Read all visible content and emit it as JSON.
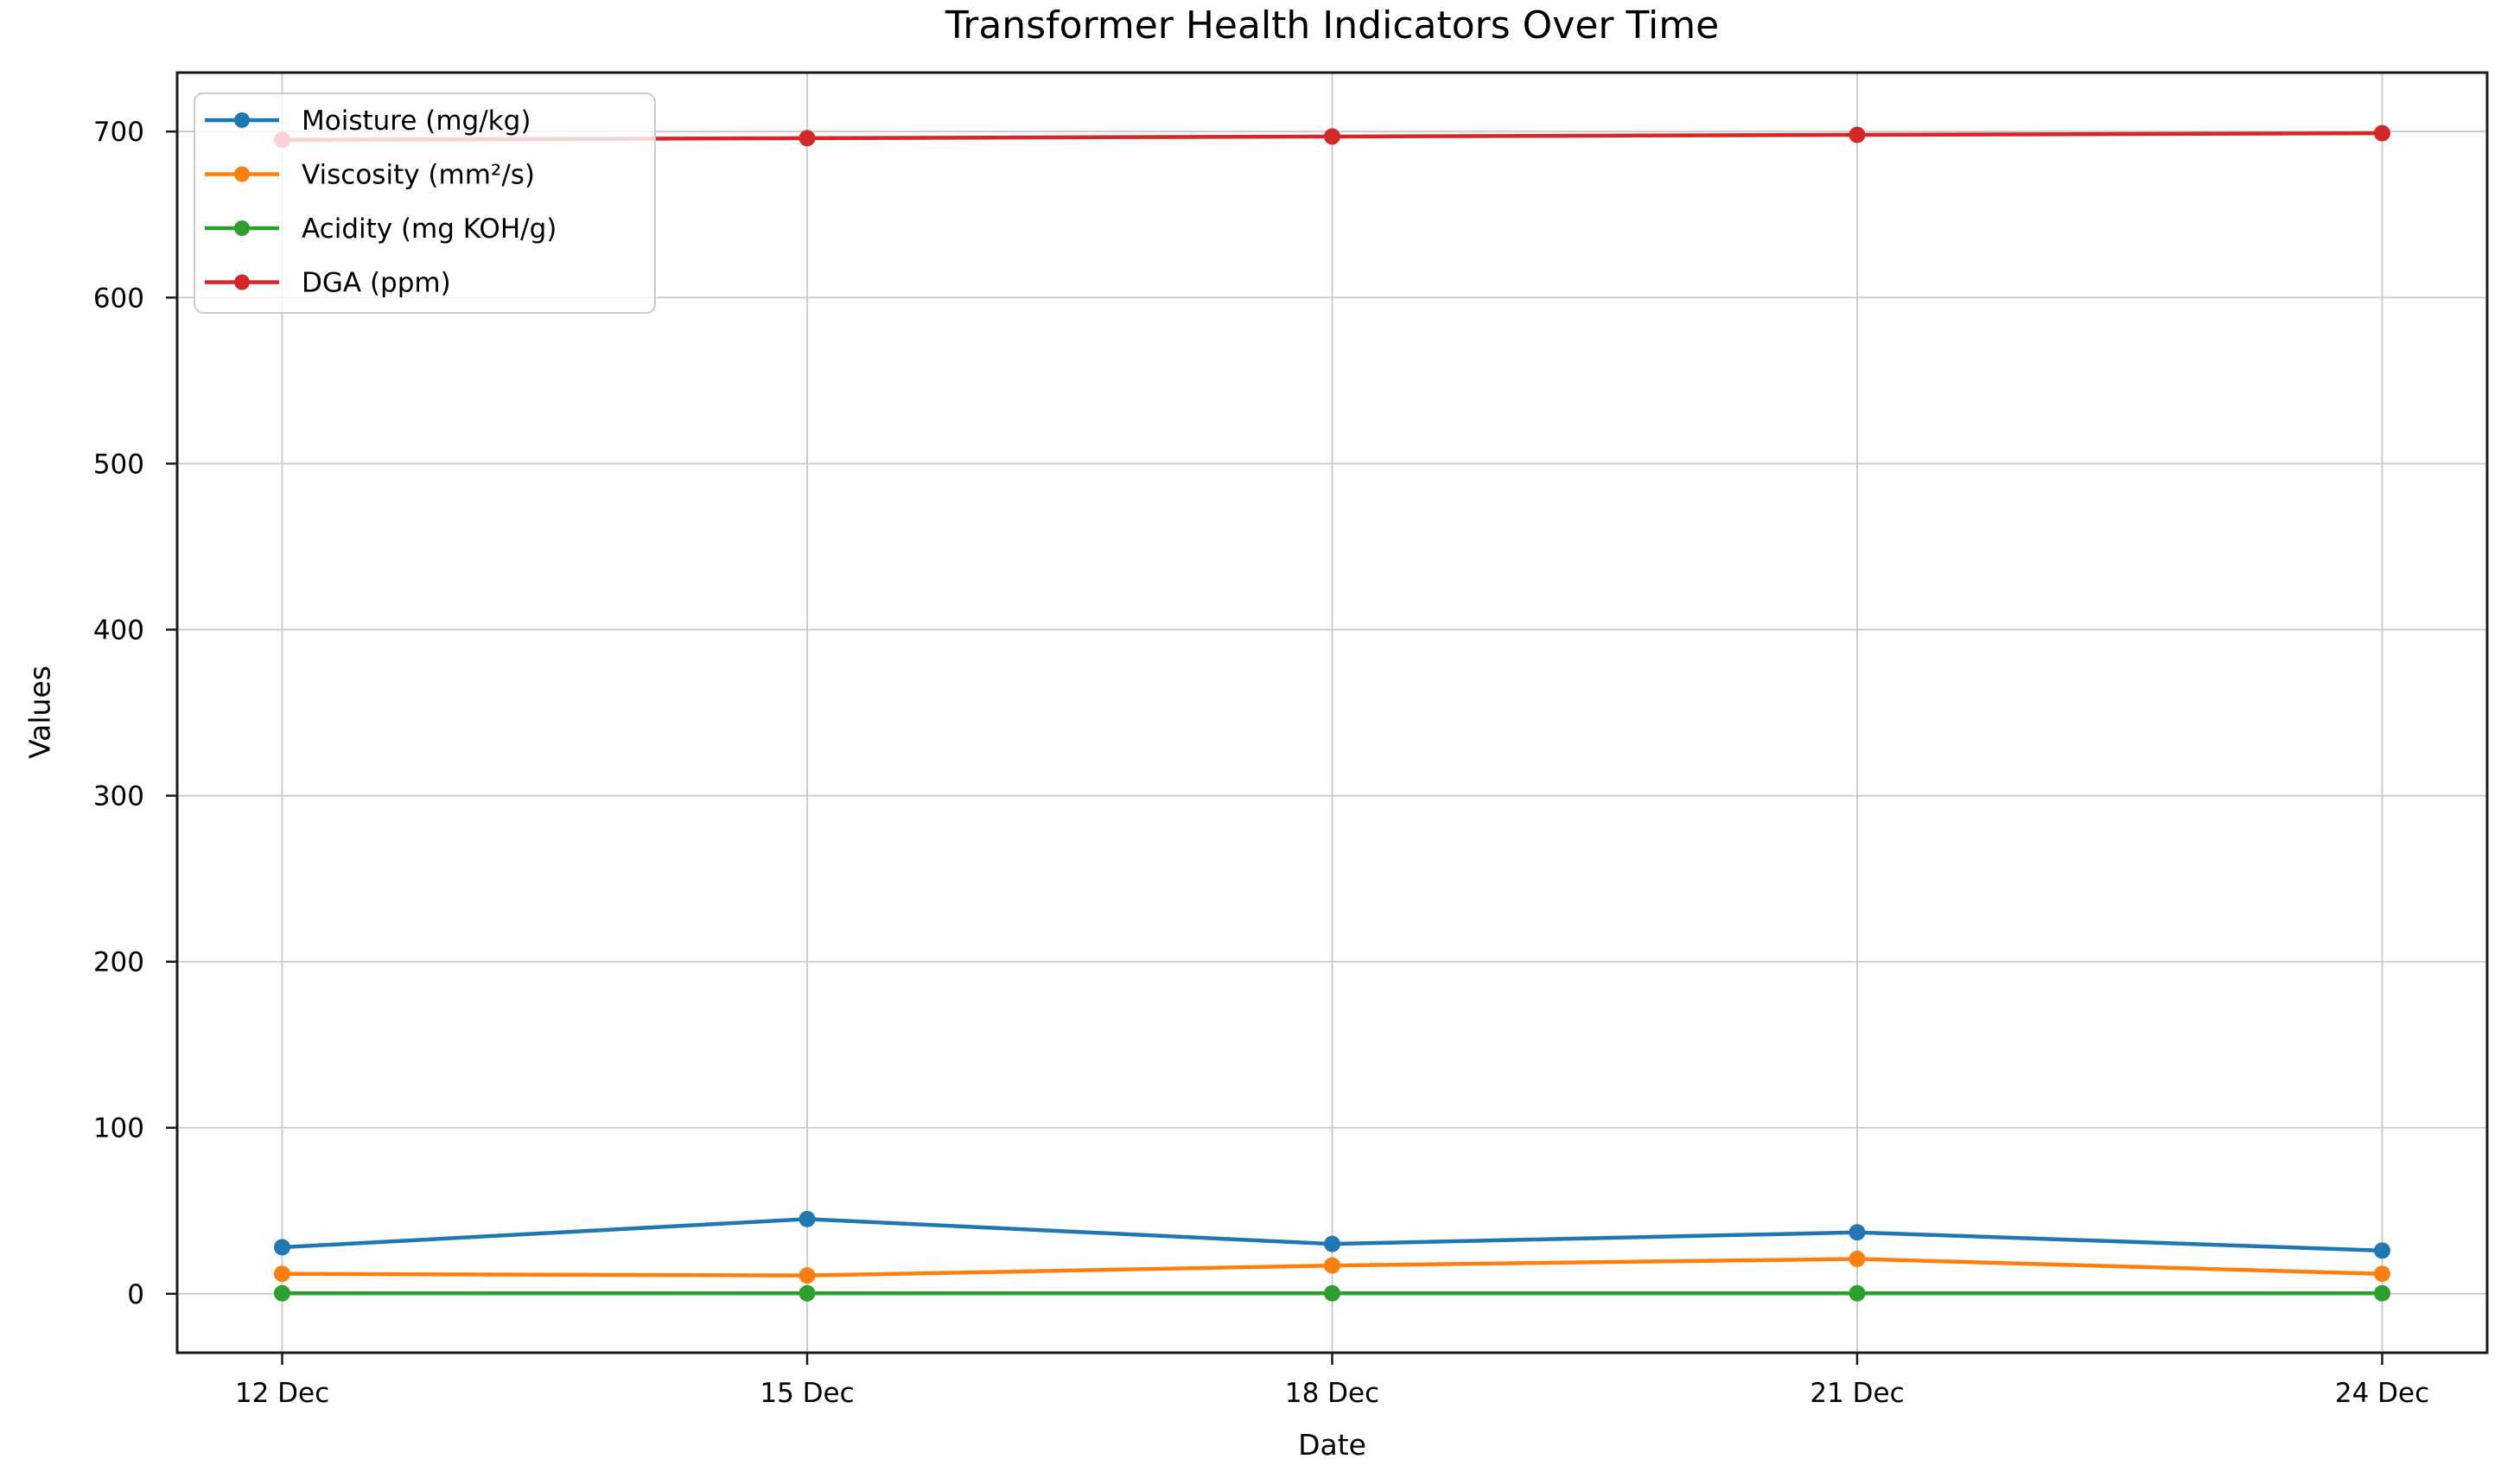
{
  "chart_data": {
    "type": "line",
    "title": "Transformer Health Indicators Over Time",
    "xlabel": "Date",
    "ylabel": "Values",
    "categories": [
      "12 Dec",
      "15 Dec",
      "18 Dec",
      "21 Dec",
      "24 Dec"
    ],
    "x_days": [
      0,
      3,
      6,
      9,
      12
    ],
    "xlim_days": [
      -0.6,
      12.6
    ],
    "yticks": [
      0,
      100,
      200,
      300,
      400,
      500,
      600,
      700
    ],
    "ylim": [
      -35.5,
      735.5
    ],
    "grid": true,
    "legend_position": "upper left",
    "marker": "circle",
    "line_style": "solid",
    "series": [
      {
        "name": "Moisture (mg/kg)",
        "color": "#1f77b4",
        "values": [
          28,
          45,
          30,
          37,
          26
        ]
      },
      {
        "name": "Viscosity (mm²/s)",
        "color": "#ff7f0e",
        "values": [
          12,
          11,
          17,
          21,
          12
        ]
      },
      {
        "name": "Acidity (mg KOH/g)",
        "color": "#2ca02c",
        "values": [
          0.3,
          0.3,
          0.3,
          0.3,
          0.3
        ]
      },
      {
        "name": "DGA (ppm)",
        "color": "#d62728",
        "values": [
          695,
          696,
          697,
          698,
          699
        ]
      }
    ]
  }
}
